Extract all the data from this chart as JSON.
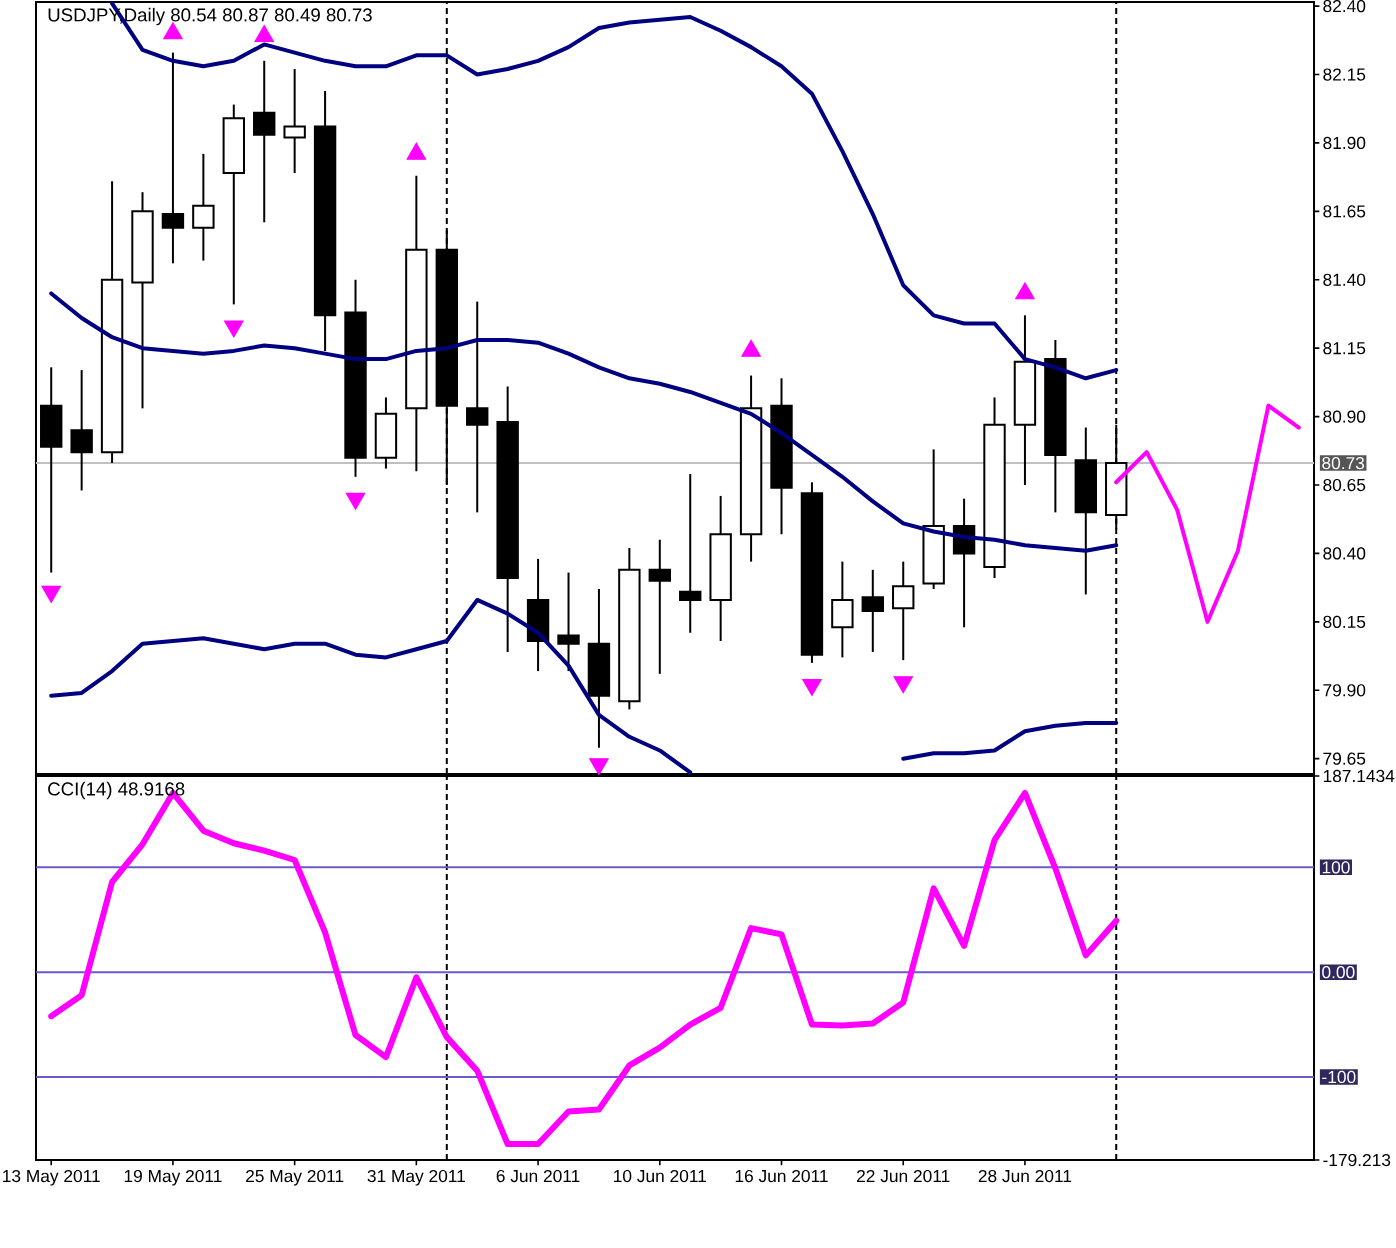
{
  "chart_data": [
    {
      "type": "candlestick",
      "title": "USDJPY,Daily 80.54 80.87 80.49 80.73",
      "categories": [
        "13 May 2011",
        null,
        null,
        null,
        "19 May 2011",
        null,
        null,
        null,
        "25 May 2011",
        null,
        null,
        null,
        "31 May 2011",
        null,
        null,
        null,
        "6 Jun 2011",
        null,
        null,
        null,
        "10 Jun 2011",
        null,
        null,
        null,
        "16 Jun 2011",
        null,
        null,
        null,
        "22 Jun 2011",
        null,
        null,
        null,
        "28 Jun 2011",
        null,
        null,
        null,
        null,
        null,
        null,
        null,
        null,
        null
      ],
      "ohlc": [
        [
          80.94,
          81.08,
          80.33,
          80.79
        ],
        [
          80.85,
          81.07,
          80.63,
          80.77
        ],
        [
          80.77,
          81.76,
          80.73,
          81.4
        ],
        [
          81.39,
          81.72,
          80.93,
          81.65
        ],
        [
          81.64,
          82.23,
          81.46,
          81.59
        ],
        [
          81.59,
          81.86,
          81.47,
          81.67
        ],
        [
          81.79,
          82.04,
          81.31,
          81.99
        ],
        [
          82.01,
          82.2,
          81.61,
          81.93
        ],
        [
          81.92,
          82.17,
          81.79,
          81.96
        ],
        [
          81.96,
          82.09,
          81.14,
          81.27
        ],
        [
          81.28,
          81.4,
          80.68,
          80.75
        ],
        [
          80.75,
          80.97,
          80.71,
          80.91
        ],
        [
          80.93,
          81.78,
          80.7,
          81.51
        ],
        [
          81.51,
          81.58,
          80.65,
          80.94
        ],
        [
          80.93,
          81.32,
          80.55,
          80.87
        ],
        [
          80.88,
          81.01,
          80.04,
          80.31
        ],
        [
          80.23,
          80.38,
          79.97,
          80.08
        ],
        [
          80.1,
          80.33,
          79.97,
          80.07
        ],
        [
          80.07,
          80.27,
          79.69,
          79.88
        ],
        [
          79.86,
          80.42,
          79.83,
          80.34
        ],
        [
          80.34,
          80.45,
          79.96,
          80.3
        ],
        [
          80.26,
          80.69,
          80.11,
          80.23
        ],
        [
          80.23,
          80.61,
          80.08,
          80.47
        ],
        [
          80.47,
          81.05,
          80.37,
          80.93
        ],
        [
          80.94,
          81.04,
          80.47,
          80.64
        ],
        [
          80.62,
          80.66,
          80.0,
          80.03
        ],
        [
          80.13,
          80.37,
          80.02,
          80.23
        ],
        [
          80.24,
          80.34,
          80.04,
          80.19
        ],
        [
          80.2,
          80.37,
          80.01,
          80.28
        ],
        [
          80.29,
          80.78,
          80.27,
          80.5
        ],
        [
          80.5,
          80.6,
          80.13,
          80.4
        ],
        [
          80.35,
          80.97,
          80.31,
          80.87
        ],
        [
          80.87,
          81.27,
          80.65,
          81.1
        ],
        [
          81.11,
          81.18,
          80.55,
          80.76
        ],
        [
          80.74,
          80.86,
          80.25,
          80.55
        ],
        [
          80.54,
          80.87,
          80.49,
          80.73
        ],
        null,
        null,
        null,
        null,
        null,
        null
      ],
      "series": [
        {
          "type": "line",
          "color": "#000080",
          "values": [
            null,
            null,
            82.41,
            82.24,
            82.2,
            82.18,
            82.2,
            82.26,
            82.23,
            82.2,
            82.18,
            82.18,
            82.22,
            82.22,
            82.15,
            82.17,
            82.2,
            82.25,
            82.32,
            82.34,
            82.35,
            82.36,
            82.31,
            82.25,
            82.18,
            82.08,
            81.87,
            81.64,
            81.38,
            81.27,
            81.24,
            81.24,
            81.11,
            81.08,
            81.04,
            81.07,
            null,
            null,
            null,
            null,
            null,
            null
          ]
        },
        {
          "type": "line",
          "color": "#000080",
          "values": [
            81.35,
            81.26,
            81.19,
            81.15,
            81.14,
            81.13,
            81.14,
            81.16,
            81.15,
            81.13,
            81.11,
            81.11,
            81.14,
            81.15,
            81.18,
            81.18,
            81.17,
            81.13,
            81.08,
            81.04,
            81.02,
            80.99,
            80.95,
            80.91,
            80.84,
            80.76,
            80.68,
            80.59,
            80.51,
            80.48,
            80.46,
            80.45,
            80.43,
            80.42,
            80.41,
            80.43,
            null,
            null,
            null,
            null,
            null,
            null
          ]
        },
        {
          "type": "line",
          "color": "#000080",
          "values": [
            79.88,
            79.89,
            79.97,
            80.07,
            80.08,
            80.09,
            80.07,
            80.05,
            80.07,
            80.07,
            80.03,
            80.02,
            80.05,
            80.08,
            80.23,
            80.18,
            80.11,
            79.99,
            79.81,
            79.73,
            79.68,
            79.6,
            null,
            null,
            null,
            null,
            null,
            null,
            79.65,
            79.67,
            79.67,
            79.68,
            79.75,
            79.77,
            79.78,
            79.78,
            null,
            null,
            null,
            null,
            null,
            null
          ]
        },
        {
          "type": "scatter",
          "color": "#ff00ff",
          "marker": "triangle",
          "values": [
            null,
            null,
            null,
            null,
            82.3,
            null,
            null,
            82.29,
            null,
            null,
            null,
            null,
            81.86,
            null,
            null,
            null,
            null,
            null,
            null,
            null,
            null,
            null,
            null,
            81.14,
            null,
            null,
            null,
            null,
            null,
            null,
            null,
            null,
            81.35,
            null,
            null,
            null,
            null,
            null,
            null,
            null,
            null,
            null
          ]
        },
        {
          "type": "scatter",
          "color": "#ff00ff",
          "marker": "triangle",
          "values": [
            80.26,
            null,
            null,
            null,
            null,
            null,
            81.23,
            null,
            null,
            null,
            80.6,
            null,
            null,
            null,
            null,
            null,
            null,
            null,
            79.63,
            null,
            null,
            null,
            null,
            null,
            null,
            79.92,
            null,
            null,
            79.93,
            null,
            null,
            null,
            null,
            null,
            null,
            null,
            null,
            null,
            null,
            null,
            null,
            null
          ]
        },
        {
          "type": "line",
          "color": "#ff00ff",
          "values": [
            null,
            null,
            null,
            null,
            null,
            null,
            null,
            null,
            null,
            null,
            null,
            null,
            null,
            null,
            null,
            null,
            null,
            null,
            null,
            null,
            null,
            null,
            null,
            null,
            null,
            null,
            null,
            null,
            null,
            null,
            null,
            null,
            null,
            null,
            null,
            80.66,
            80.77,
            80.56,
            80.15,
            80.41,
            80.94,
            80.86
          ]
        }
      ],
      "ylim": [
        79.594,
        82.415
      ],
      "yticks": [
        79.65,
        {
          "value": 79.9,
          "label": "79.90"
        },
        80.15,
        {
          "value": 80.4,
          "label": "80.40"
        },
        80.65,
        {
          "value": 80.9,
          "label": "80.90"
        },
        81.15,
        {
          "value": 81.4,
          "label": "81.40"
        },
        81.65,
        {
          "value": 81.9,
          "label": "81.90"
        },
        82.15,
        {
          "value": 82.4,
          "label": "82.40"
        }
      ],
      "ref_lines": [
        {
          "axis": "y",
          "value": 80.73,
          "label": "80.73",
          "color": "#c0c0c0"
        }
      ],
      "tick_labels": "y"
    },
    {
      "type": "line",
      "title": "CCI(14) 48.9168",
      "categories": [
        "13 May 2011",
        null,
        null,
        null,
        "19 May 2011",
        null,
        null,
        null,
        "25 May 2011",
        null,
        null,
        null,
        "31 May 2011",
        null,
        null,
        null,
        "6 Jun 2011",
        null,
        null,
        null,
        "10 Jun 2011",
        null,
        null,
        null,
        "16 Jun 2011",
        null,
        null,
        null,
        "22 Jun 2011",
        null,
        null,
        null,
        "28 Jun 2011",
        null,
        null,
        null,
        null,
        null,
        null,
        null,
        null,
        null
      ],
      "values": [
        -42,
        -22,
        86,
        122,
        171,
        135,
        123,
        116,
        107,
        38,
        -60,
        -81,
        -5,
        -62,
        -94,
        -164,
        -164,
        -133,
        -131,
        -89,
        -72,
        -50,
        -34,
        42,
        36,
        -50,
        -51,
        -49,
        -29,
        80,
        25,
        126,
        171,
        99,
        16,
        49,
        null,
        null,
        null,
        null,
        null,
        null
      ],
      "color": "#ff00ff",
      "ylim": [
        -179.213,
        187.1434
      ],
      "yticks": [
        -179.213,
        187.1434
      ],
      "ref_lines": [
        {
          "axis": "y",
          "value": 100,
          "label": "100",
          "color": "#6a5acd"
        },
        {
          "axis": "y",
          "value": 0,
          "label": "0.00",
          "color": "#6a5acd"
        },
        {
          "axis": "y",
          "value": -100,
          "label": "-100",
          "color": "#6a5acd"
        }
      ]
    }
  ]
}
